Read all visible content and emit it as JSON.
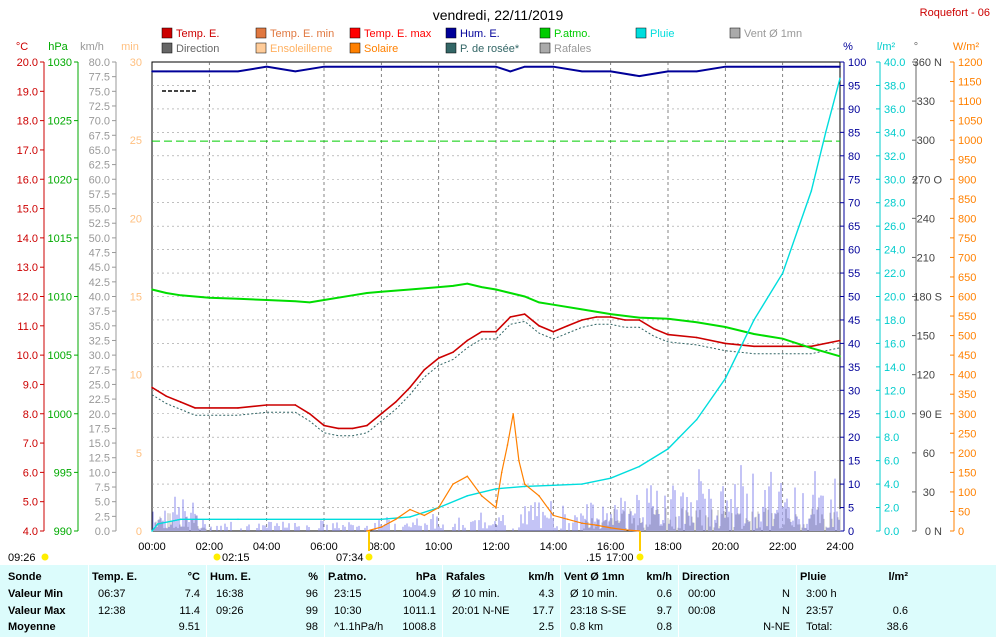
{
  "header": {
    "title": "vendredi, 22/11/2019",
    "station": "Roquefort - 06"
  },
  "legend": [
    {
      "label": "Temp. E.",
      "color": "#cc0000"
    },
    {
      "label": "Direction",
      "color": "#666666"
    },
    {
      "label": "Temp. E. min",
      "color": "#e07840"
    },
    {
      "label": "Ensoleilleme",
      "color": "#ffcc99"
    },
    {
      "label": "Temp. E. max",
      "color": "#ff0000"
    },
    {
      "label": "Solaire",
      "color": "#ff8000"
    },
    {
      "label": "Hum. E.",
      "color": "#000099"
    },
    {
      "label": "P. de rosée*",
      "color": "#336666"
    },
    {
      "label": "P.atmo.",
      "color": "#00cc00"
    },
    {
      "label": "Rafales",
      "color": "#aaaaaa"
    },
    {
      "label": "Pluie",
      "color": "#00dddd"
    },
    {
      "label": "Vent Ø 1mn",
      "color": "#aaaaaa"
    }
  ],
  "axes_units": {
    "temp": "°C",
    "press": "hPa",
    "wind": "km/h",
    "min": "min",
    "hum": "%",
    "rain": "l/m²",
    "dir": "°",
    "solar": "W/m²"
  },
  "time_labels": [
    "00:00",
    "02:00",
    "04:00",
    "06:00",
    "08:00",
    "10:00",
    "12:00",
    "14:00",
    "16:00",
    "18:00",
    "20:00",
    "22:00",
    "24:00"
  ],
  "sun_events": {
    "moonrise": "09:26",
    "moonset": "02:15",
    "sunrise": "07:34",
    "sunset": "17:00",
    "sunset_partial": ".15"
  },
  "chart_data": {
    "type": "line",
    "title": "vendredi, 22/11/2019",
    "x_range_hours": [
      0,
      24
    ],
    "series": [
      {
        "name": "Temp. E.",
        "unit": "°C",
        "x": [
          0,
          0.5,
          1,
          1.5,
          2,
          3,
          4,
          5,
          5.5,
          6,
          6.5,
          7,
          7.5,
          8,
          8.5,
          9,
          9.5,
          10,
          10.5,
          11,
          11.5,
          12,
          12.5,
          13,
          13.5,
          14,
          14.5,
          15,
          15.5,
          16,
          16.5,
          17,
          17.5,
          18,
          19,
          20,
          21,
          22,
          23,
          24
        ],
        "values": [
          8.9,
          8.6,
          8.4,
          8.2,
          8.2,
          8.2,
          8.3,
          8.3,
          8.0,
          7.6,
          7.5,
          7.5,
          7.6,
          8.0,
          8.4,
          8.9,
          9.5,
          9.9,
          10.1,
          10.5,
          10.8,
          10.8,
          11.3,
          11.4,
          11.0,
          10.8,
          11.0,
          11.2,
          11.3,
          11.3,
          11.2,
          11.2,
          10.9,
          10.7,
          10.6,
          10.4,
          10.3,
          10.3,
          10.3,
          10.5
        ]
      },
      {
        "name": "P.atmo.",
        "unit": "hPa",
        "x": [
          0,
          0.5,
          1,
          2,
          3,
          4,
          5,
          5.5,
          6,
          7,
          7.5,
          8,
          9,
          10,
          10.5,
          11,
          11.5,
          12,
          13,
          13.5,
          14,
          15,
          16,
          17,
          18,
          19,
          20,
          21,
          22,
          23,
          24
        ],
        "values": [
          1010.6,
          1010.3,
          1010.1,
          1009.9,
          1009.8,
          1009.7,
          1009.6,
          1009.5,
          1009.7,
          1010.1,
          1010.3,
          1010.4,
          1010.6,
          1010.8,
          1010.9,
          1011.1,
          1010.8,
          1010.6,
          1010.0,
          1009.5,
          1009.3,
          1008.9,
          1008.5,
          1008.2,
          1008.1,
          1007.8,
          1007.4,
          1006.8,
          1006.4,
          1005.6,
          1004.9
        ]
      },
      {
        "name": "Hum. E.",
        "unit": "%",
        "x": [
          0,
          0.5,
          2,
          3,
          4,
          5,
          6,
          7,
          8,
          9,
          9.4,
          10,
          11,
          12,
          12.5,
          13,
          14,
          15,
          16,
          17,
          18,
          19,
          20,
          21,
          22,
          23,
          23.5,
          24
        ],
        "values": [
          98,
          98,
          98,
          98,
          99,
          98,
          99,
          99,
          99,
          99,
          99,
          99,
          99,
          99,
          98,
          99,
          99,
          98,
          98,
          97,
          98,
          98,
          99,
          99,
          99,
          99,
          99,
          99
        ]
      },
      {
        "name": "Pluie",
        "unit": "l/m²",
        "x": [
          0,
          0.2,
          1,
          2,
          3,
          4,
          6,
          8,
          9,
          10,
          11,
          12,
          13,
          14,
          15,
          16,
          17,
          18,
          19,
          20,
          21,
          22,
          23,
          23.5,
          24
        ],
        "values": [
          0,
          0.6,
          1.0,
          1.0,
          1.0,
          1.0,
          1.0,
          1.0,
          1.2,
          2.0,
          3.0,
          3.6,
          3.8,
          3.9,
          4.0,
          4.5,
          5.5,
          7.0,
          9.5,
          13.0,
          18.0,
          22.0,
          29.0,
          34.0,
          38.6
        ]
      },
      {
        "name": "Solaire",
        "unit": "W/m²",
        "x": [
          7.5,
          8,
          8.5,
          9,
          9.5,
          10,
          10.5,
          11,
          11.5,
          12,
          12.2,
          12.4,
          12.6,
          12.8,
          13,
          13.5,
          14,
          14.5,
          15,
          15.5,
          16,
          16.5,
          17
        ],
        "values": [
          0,
          10,
          30,
          55,
          40,
          60,
          120,
          140,
          90,
          60,
          150,
          220,
          300,
          180,
          120,
          90,
          40,
          30,
          20,
          15,
          8,
          3,
          0
        ]
      }
    ],
    "dashed_reference": {
      "unit": "°C",
      "value": 17.3
    },
    "axes": {
      "temp": {
        "range": [
          4.0,
          20.0
        ],
        "unit": "°C"
      },
      "press": {
        "range": [
          990,
          1030
        ],
        "unit": "hPa"
      },
      "wind": {
        "range": [
          0,
          80
        ],
        "unit": "km/h"
      },
      "min": {
        "range": [
          0,
          30
        ],
        "unit": "min"
      },
      "hum": {
        "range": [
          0,
          100
        ],
        "unit": "%"
      },
      "rain": {
        "range": [
          0,
          40
        ],
        "unit": "l/m²"
      },
      "dir": {
        "range": [
          0,
          360
        ],
        "unit": "°"
      },
      "solar": {
        "range": [
          0,
          1200
        ],
        "unit": "W/m²"
      }
    }
  },
  "stats": {
    "rows": [
      "Sonde",
      "Valeur Min",
      "Valeur Max",
      "Moyenne"
    ],
    "groups": [
      {
        "title": "Temp. E.",
        "unit": "°C",
        "rows": [
          [
            "06:37",
            "7.4"
          ],
          [
            "12:38",
            "11.4"
          ],
          [
            "",
            "9.51"
          ]
        ]
      },
      {
        "title": "Hum. E.",
        "unit": "%",
        "rows": [
          [
            "16:38",
            "96"
          ],
          [
            "09:26",
            "99"
          ],
          [
            "",
            "98"
          ]
        ]
      },
      {
        "title": "P.atmo.",
        "unit": "hPa",
        "rows": [
          [
            "23:15",
            "1004.9"
          ],
          [
            "10:30",
            "1011.1"
          ],
          [
            "^1.1hPa/h",
            "1008.8"
          ]
        ]
      },
      {
        "title": "Rafales",
        "unit": "km/h",
        "rows": [
          [
            "Ø 10 min.",
            "4.3"
          ],
          [
            "20:01   N-NE",
            "17.7"
          ],
          [
            "",
            "2.5"
          ]
        ]
      },
      {
        "title": "Vent Ø 1mn",
        "unit": "km/h",
        "rows": [
          [
            "Ø 10 min.",
            "0.6"
          ],
          [
            "23:18   S-SE",
            "9.7"
          ],
          [
            "0.8 km",
            "0.8"
          ]
        ]
      },
      {
        "title": "Direction",
        "unit": "",
        "rows": [
          [
            "00:00",
            "N"
          ],
          [
            "00:08",
            "N"
          ],
          [
            "",
            "N-NE"
          ]
        ]
      },
      {
        "title": "Pluie",
        "unit": "l/m²",
        "rows": [
          [
            "3:00 h",
            ""
          ],
          [
            "23:57",
            "0.6"
          ],
          [
            "Total:",
            "38.6"
          ]
        ]
      }
    ]
  }
}
